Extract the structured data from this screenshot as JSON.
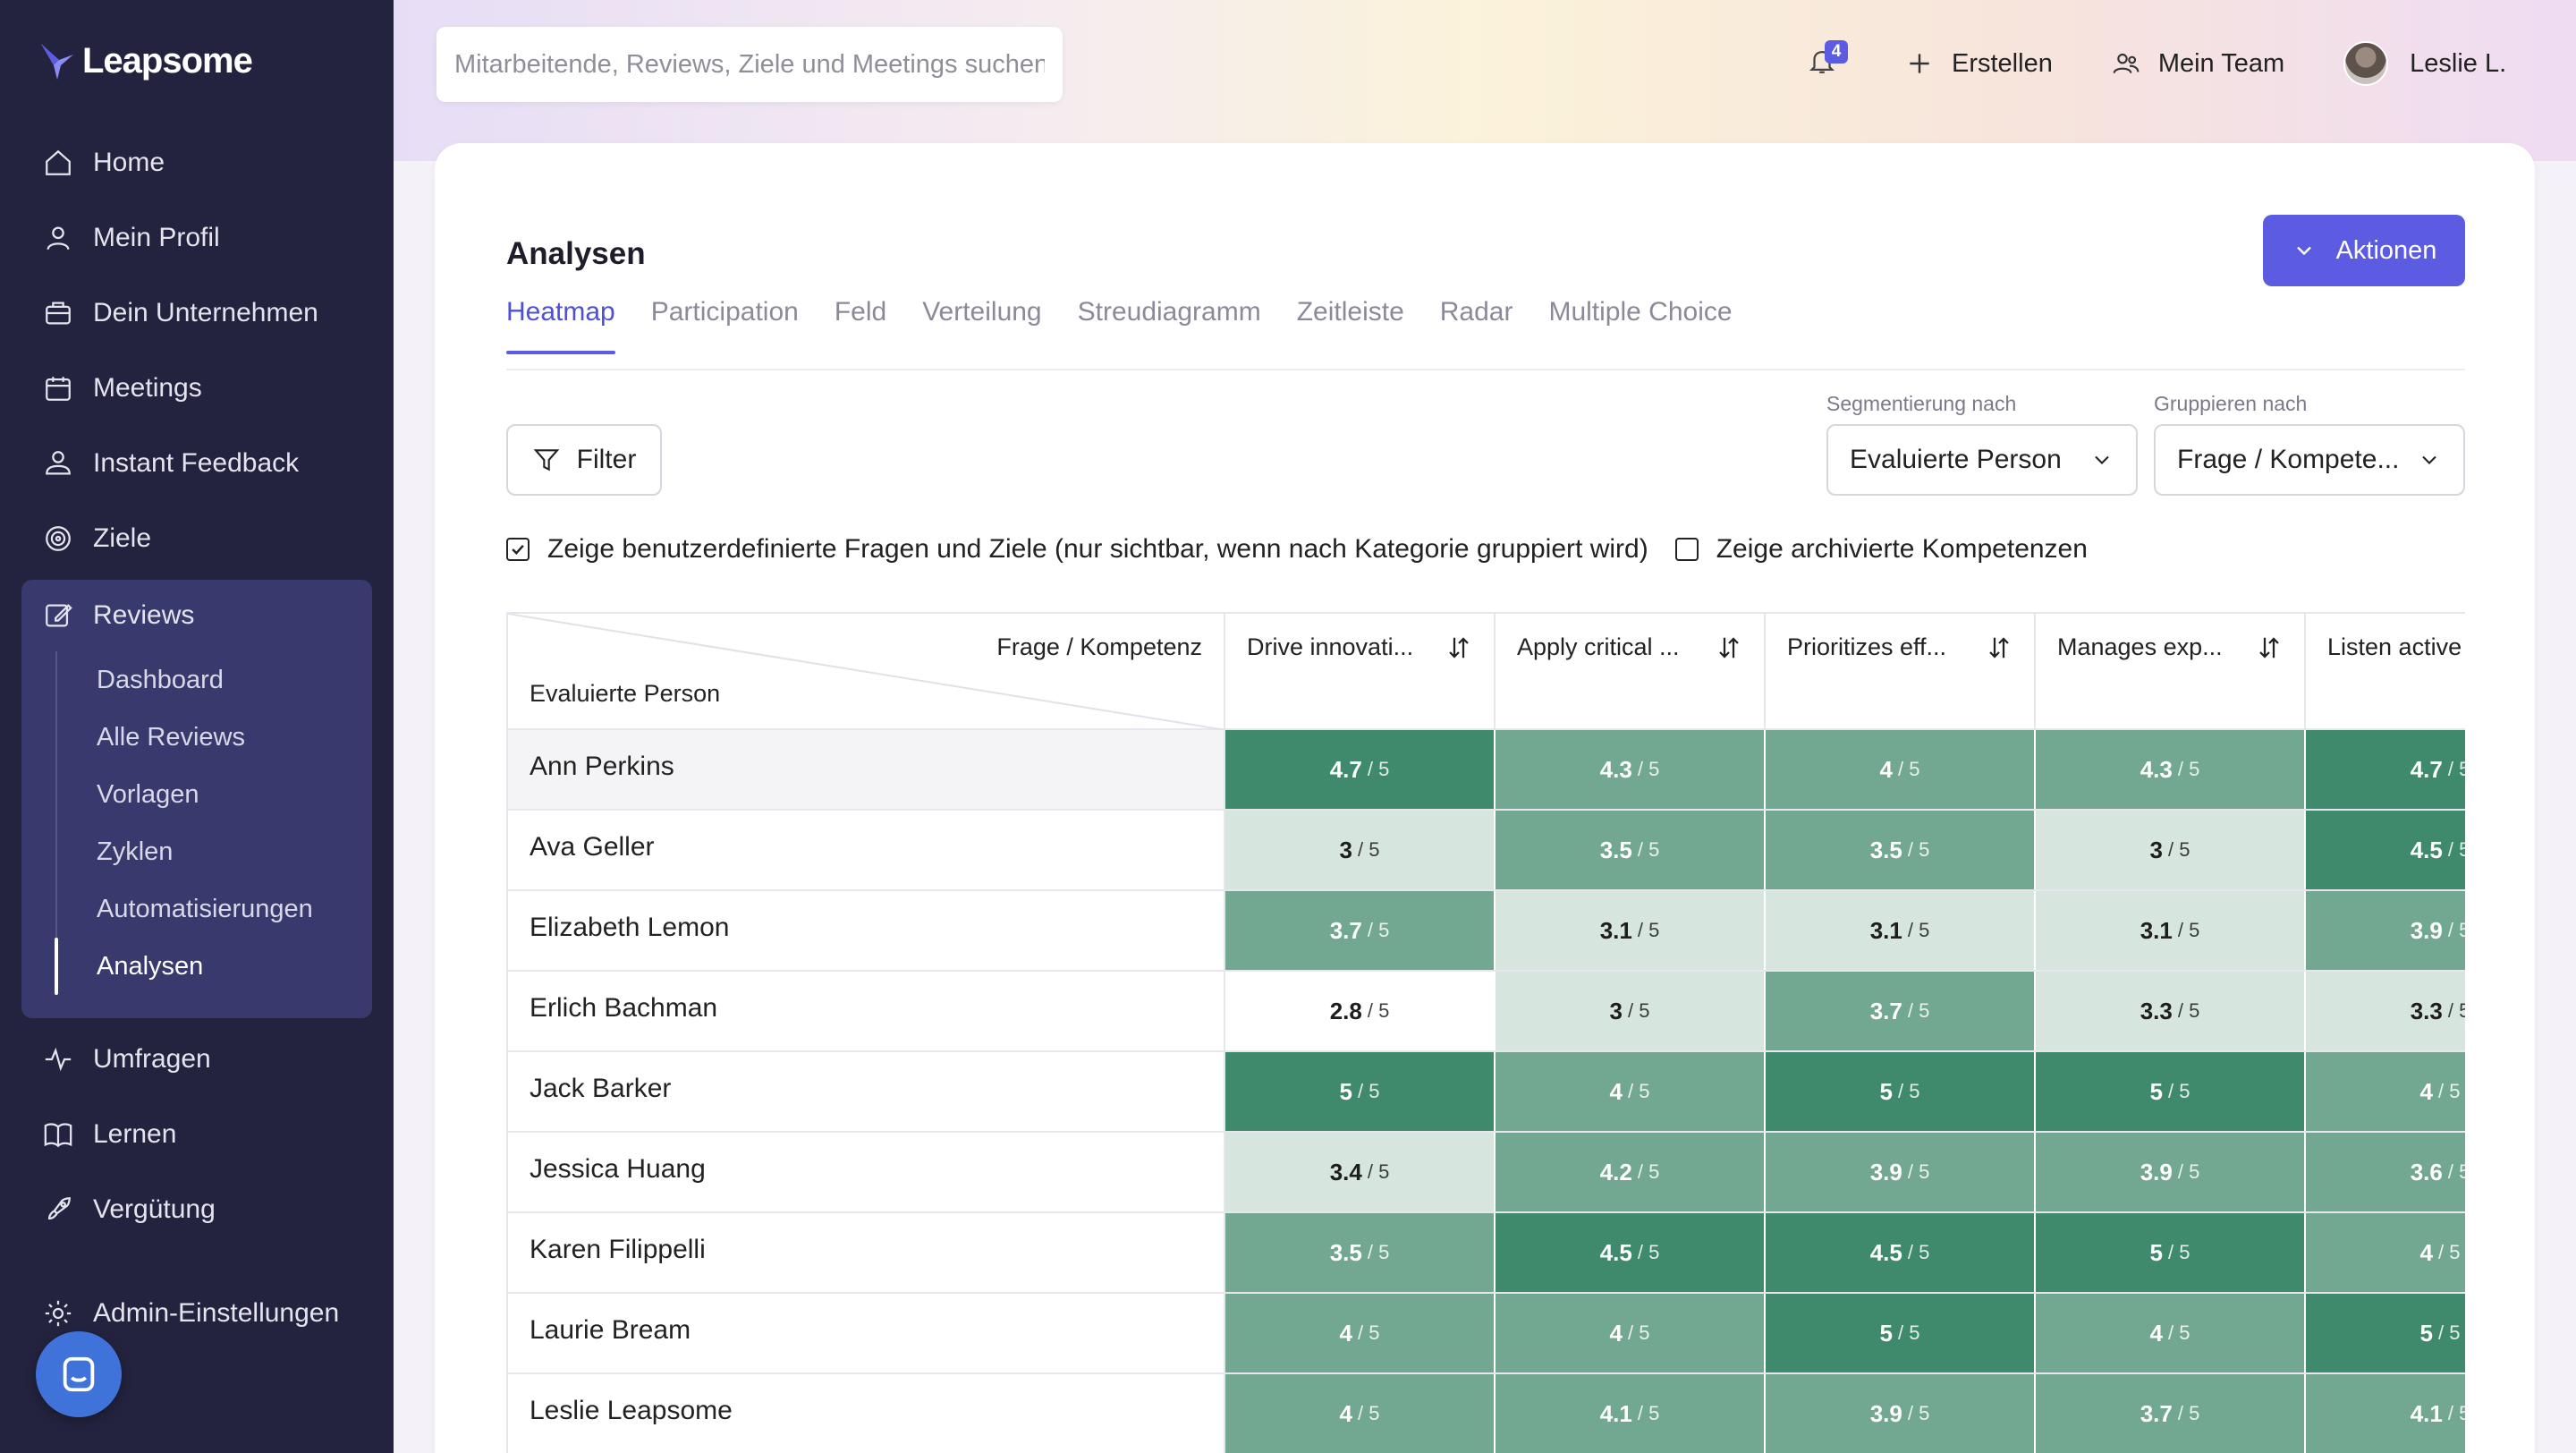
{
  "app": {
    "name": "Leapsome"
  },
  "sidebar": {
    "items_top": [
      {
        "label": "Home",
        "icon": "home-icon"
      },
      {
        "label": "Mein Profil",
        "icon": "user-icon"
      },
      {
        "label": "Dein Unternehmen",
        "icon": "briefcase-icon"
      },
      {
        "label": "Meetings",
        "icon": "calendar-icon"
      },
      {
        "label": "Instant Feedback",
        "icon": "feedback-icon"
      },
      {
        "label": "Ziele",
        "icon": "target-icon"
      }
    ],
    "reviews": {
      "label": "Reviews",
      "icon": "pencil-square-icon",
      "sub": [
        "Dashboard",
        "Alle Reviews",
        "Vorlagen",
        "Zyklen",
        "Automatisierungen",
        "Analysen"
      ],
      "active_sub": "Analysen"
    },
    "items_bottom": [
      {
        "label": "Umfragen",
        "icon": "pulse-icon"
      },
      {
        "label": "Lernen",
        "icon": "book-icon"
      },
      {
        "label": "Vergütung",
        "icon": "rocket-icon"
      }
    ],
    "admin": {
      "label": "Admin-Einstellungen",
      "icon": "gear-icon"
    }
  },
  "topbar": {
    "search_placeholder": "Mitarbeitende, Reviews, Ziele und Meetings suchen",
    "notifications": "4",
    "create_label": "Erstellen",
    "team_label": "Mein Team",
    "user_name": "Leslie L."
  },
  "page": {
    "title": "Analysen",
    "actions_label": "Aktionen",
    "tabs": [
      "Heatmap",
      "Participation",
      "Feld",
      "Verteilung",
      "Streudiagramm",
      "Zeitleiste",
      "Radar",
      "Multiple Choice"
    ],
    "active_tab": "Heatmap",
    "filter_label": "Filter",
    "segment": {
      "label": "Segmentierung nach",
      "value": "Evaluierte Person"
    },
    "group": {
      "label": "Gruppieren nach",
      "value": "Frage / Kompete..."
    },
    "check_custom": {
      "label": "Zeige benutzerdefinierte Fragen und Ziele (nur sichtbar, wenn nach Kategorie gruppiert wird)",
      "checked": true
    },
    "check_archived": {
      "label": "Zeige archivierte Kompetenzen",
      "checked": false
    }
  },
  "table": {
    "corner_top": "Frage / Kompetenz",
    "corner_bottom": "Evaluierte Person",
    "denominator": "/ 5",
    "columns": [
      "Drive innovati...",
      "Apply critical ...",
      "Prioritizes eff...",
      "Manages exp...",
      "Listen active"
    ],
    "rows": [
      {
        "name": "Ann Perkins",
        "values": [
          "4.7",
          "4.3",
          "4",
          "4.3",
          "4.7"
        ]
      },
      {
        "name": "Ava Geller",
        "values": [
          "3",
          "3.5",
          "3.5",
          "3",
          "4.5"
        ]
      },
      {
        "name": "Elizabeth Lemon",
        "values": [
          "3.7",
          "3.1",
          "3.1",
          "3.1",
          "3.9"
        ]
      },
      {
        "name": "Erlich Bachman",
        "values": [
          "2.8",
          "3",
          "3.7",
          "3.3",
          "3.3"
        ]
      },
      {
        "name": "Jack Barker",
        "values": [
          "5",
          "4",
          "5",
          "5",
          "4"
        ]
      },
      {
        "name": "Jessica Huang",
        "values": [
          "3.4",
          "4.2",
          "3.9",
          "3.9",
          "3.6"
        ]
      },
      {
        "name": "Karen Filippelli",
        "values": [
          "3.5",
          "4.5",
          "4.5",
          "5",
          "4"
        ]
      },
      {
        "name": "Laurie Bream",
        "values": [
          "4",
          "4",
          "5",
          "4",
          "5"
        ]
      },
      {
        "name": "Leslie Leapsome",
        "values": [
          "4",
          "4.1",
          "3.9",
          "3.7",
          "4.1"
        ]
      }
    ],
    "colors": {
      "dark": "#3f8a6c",
      "mid": "#72a891",
      "light": "#d6e5de",
      "white": "#ffffff"
    }
  }
}
